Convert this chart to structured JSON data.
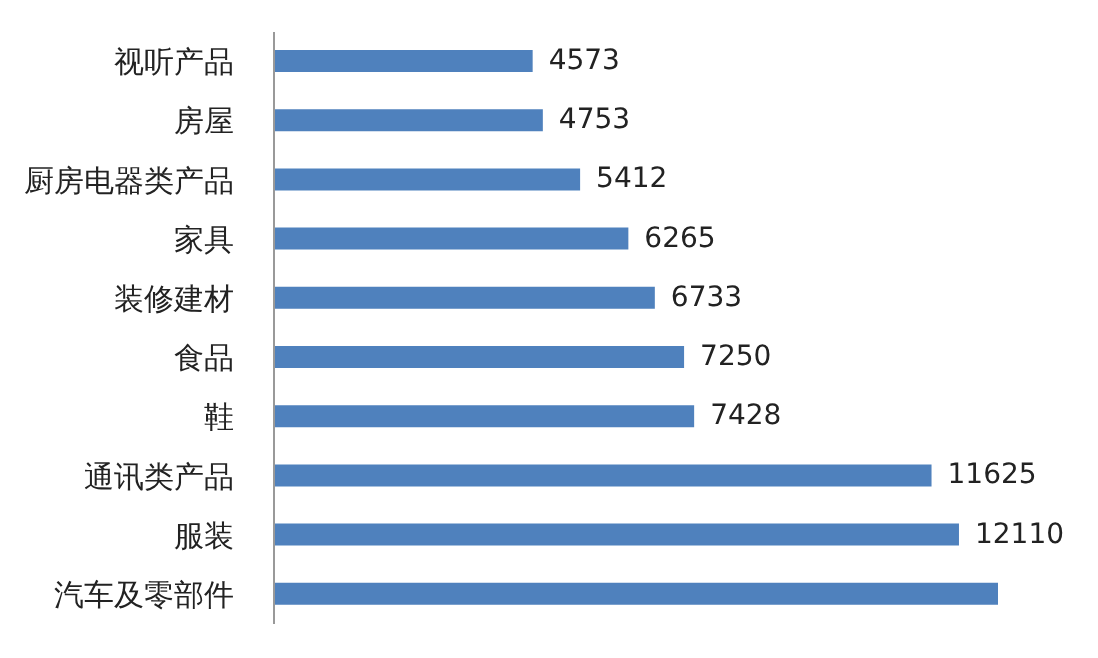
{
  "chart_data": {
    "type": "bar",
    "orientation": "horizontal",
    "categories": [
      "视听产品",
      "房屋",
      "厨房电器类产品",
      "家具",
      "装修建材",
      "食品",
      "鞋",
      "通讯类产品",
      "服装",
      "汽车及零部件"
    ],
    "values": [
      4573,
      4753,
      5412,
      6265,
      6733,
      7250,
      7428,
      11625,
      12110,
      12800
    ],
    "value_labels": [
      "4573",
      "4753",
      "5412",
      "6265",
      "6733",
      "7250",
      "7428",
      "11625",
      "12110",
      null
    ],
    "color": "#4f81bd",
    "grid": false,
    "legend": false
  }
}
